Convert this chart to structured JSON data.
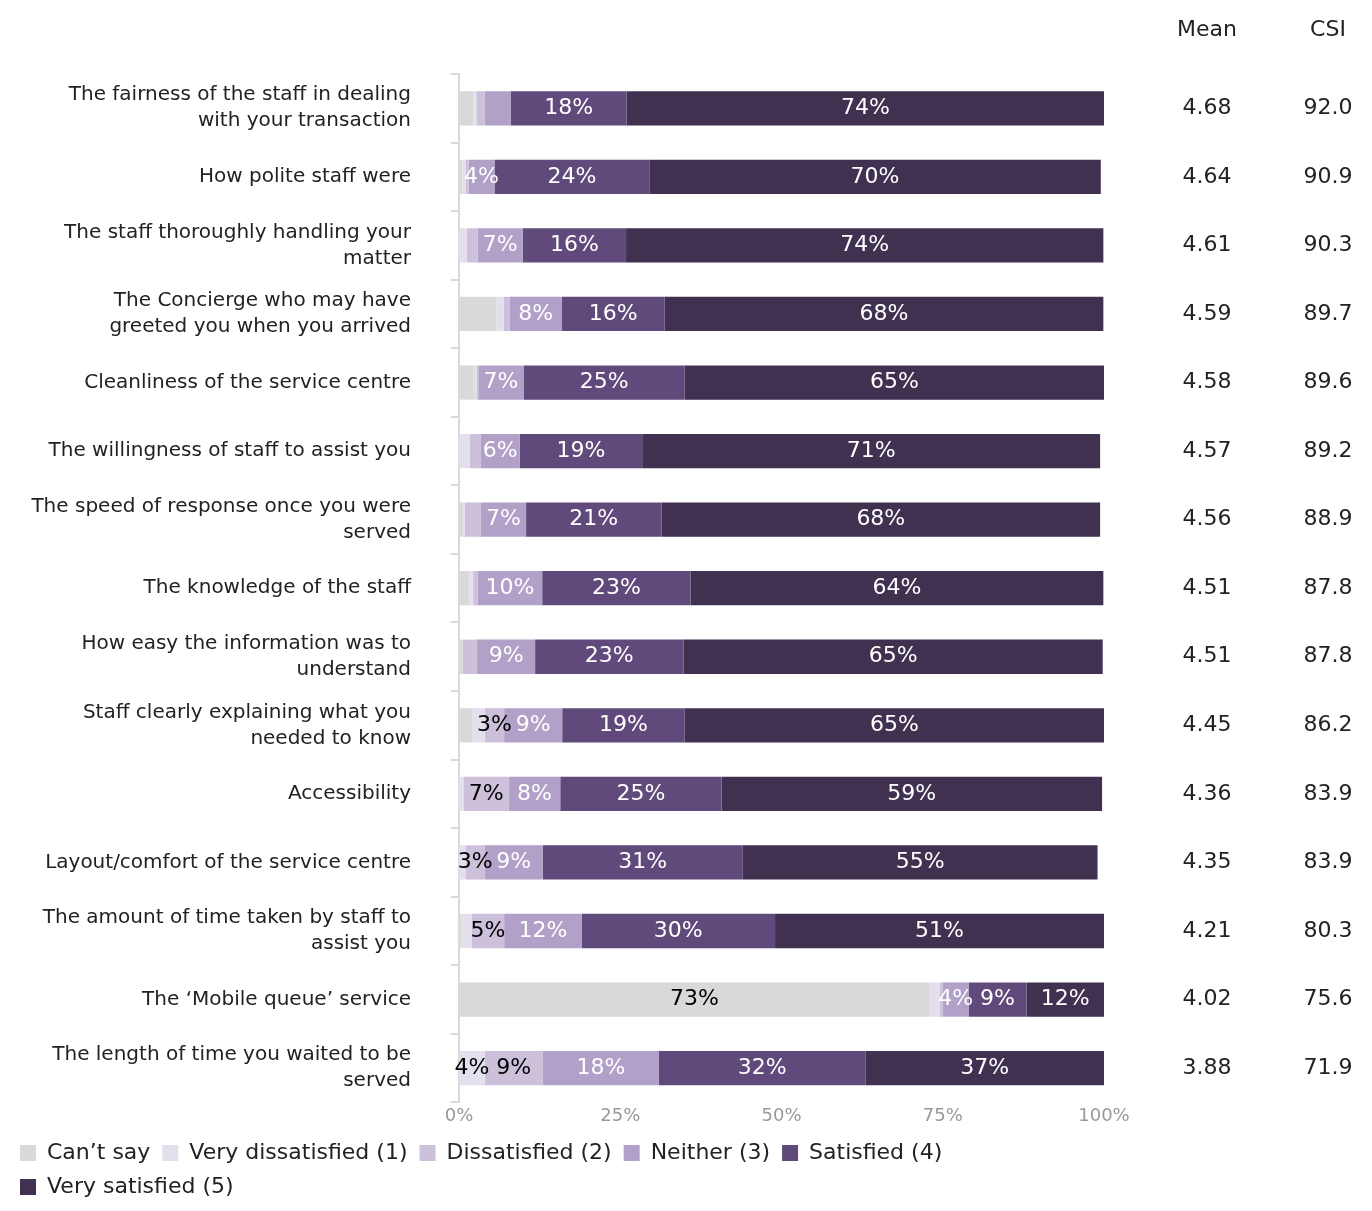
{
  "chart_data": {
    "type": "bar",
    "orientation": "horizontal",
    "stacked": true,
    "grid": false,
    "legend": "bottom",
    "categories": [
      "The fairness of the staff in dealing with your transaction",
      "How polite staff were",
      "The staff thoroughly handling your matter",
      "The Concierge who may have greeted you when you arrived",
      "Cleanliness of the service centre",
      "The willingness of staff to assist you",
      "The speed of response once you were served",
      "The knowledge of the staff",
      "How easy the information was to understand",
      "Staff clearly explaining what you needed to know",
      "Accessibility",
      "Layout/comfort of the service centre",
      "The amount of time taken by staff to assist you",
      "The ‘Mobile queue’ service",
      "The length of time you waited to be served"
    ],
    "xlim": [
      0,
      100
    ],
    "xticks": [
      {
        "value": 0,
        "label": "0%"
      },
      {
        "value": 25,
        "label": "25%"
      },
      {
        "value": 50,
        "label": "50%"
      },
      {
        "value": 75,
        "label": "75%"
      },
      {
        "value": 100,
        "label": "100%"
      }
    ],
    "series": [
      {
        "name": "Can’t say",
        "color": "#d9d9d9",
        "values": [
          2.2,
          0.5,
          0,
          5.8,
          2.3,
          0,
          0.6,
          1.6,
          0.6,
          2,
          0,
          0,
          0.4,
          73,
          0
        ],
        "value_labels": [
          null,
          null,
          null,
          null,
          null,
          null,
          null,
          null,
          null,
          null,
          null,
          null,
          null,
          "73%",
          null
        ]
      },
      {
        "name": "Very dissatisfied (1)",
        "color": "#e4dfec",
        "values": [
          0.5,
          0.5,
          1.2,
          1.1,
          0.4,
          1.7,
          0.3,
          0.6,
          null,
          2,
          0.7,
          1,
          1.6,
          1.5,
          4
        ],
        "value_labels": [
          null,
          null,
          null,
          null,
          null,
          null,
          null,
          null,
          null,
          null,
          null,
          null,
          null,
          null,
          "4%"
        ]
      },
      {
        "name": "Dissatisfied (2)",
        "color": "#ccc0da",
        "values": [
          1.3,
          0.5,
          1.7,
          1,
          0.3,
          1.7,
          2.5,
          0.7,
          2.2,
          3,
          7,
          3,
          5,
          0.5,
          9
        ],
        "value_labels": [
          null,
          null,
          null,
          null,
          null,
          null,
          null,
          null,
          null,
          "3%",
          "7%",
          "3%",
          "5%",
          null,
          "9%"
        ]
      },
      {
        "name": "Neither (3)",
        "color": "#b1a0c7",
        "values": [
          4,
          4,
          7,
          8,
          7,
          6,
          7,
          10,
          9,
          9,
          8,
          9,
          12,
          4,
          18
        ],
        "value_labels": [
          null,
          "4%",
          "7%",
          "8%",
          "7%",
          "6%",
          "7%",
          "10%",
          "9%",
          "9%",
          "8%",
          "9%",
          "12%",
          "4%",
          "18%"
        ]
      },
      {
        "name": "Satisfied (4)",
        "color": "#604a7b",
        "values": [
          18,
          24,
          16,
          16,
          25,
          19,
          21,
          23,
          23,
          19,
          25,
          31,
          30,
          9,
          32
        ],
        "value_labels": [
          "18%",
          "24%",
          "16%",
          "16%",
          "25%",
          "19%",
          "21%",
          "23%",
          "23%",
          "19%",
          "25%",
          "31%",
          "30%",
          "9%",
          "32%"
        ]
      },
      {
        "name": "Very satisfied (5)",
        "color": "#403151",
        "values": [
          74,
          70,
          74,
          68,
          65,
          71,
          68,
          64,
          65,
          65,
          59,
          55,
          51,
          12,
          37
        ],
        "value_labels": [
          "74%",
          "70%",
          "74%",
          "68%",
          "65%",
          "71%",
          "68%",
          "64%",
          "65%",
          "65%",
          "59%",
          "55%",
          "51%",
          "12%",
          "37%"
        ]
      }
    ],
    "annotations": [
      "Mean",
      "CSI",
      "4.68",
      "92.0",
      "4.64",
      "90.9",
      "4.61",
      "90.3",
      "4.59",
      "89.7",
      "4.58",
      "89.6",
      "4.57",
      "89.2",
      "4.56",
      "88.9",
      "4.51",
      "87.8",
      "4.51",
      "87.8",
      "4.45",
      "86.2",
      "4.36",
      "83.9",
      "4.35",
      "83.9",
      "4.21",
      "80.3",
      "4.02",
      "75.6",
      "3.88",
      "71.9"
    ]
  }
}
